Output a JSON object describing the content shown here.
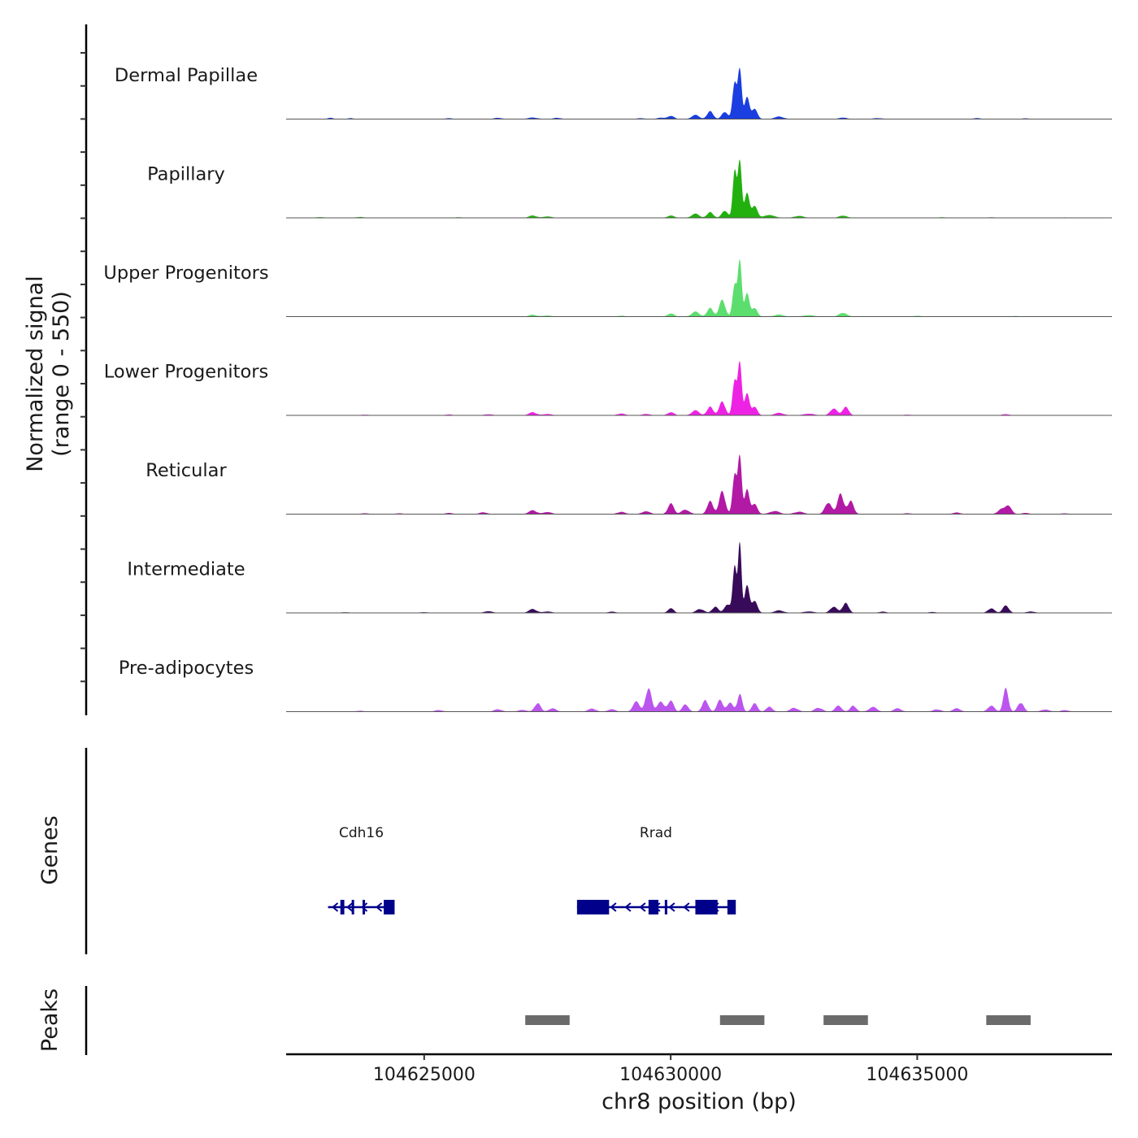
{
  "chart_data": {
    "type": "area",
    "title": "",
    "ylabel_line1": "Normalized signal",
    "ylabel_line2": "(range 0 - 550)",
    "ylim": [
      0,
      550
    ],
    "xlabel": "chr8 position (bp)",
    "xlim": [
      104622200,
      104638950
    ],
    "x_ticks": [
      104625000,
      104630000,
      104635000
    ],
    "x_tick_labels": [
      "104625000",
      "104630000",
      "104635000"
    ],
    "series": [
      {
        "name": "Dermal Papillae",
        "color": "#1a3ee0",
        "peaks": [
          [
            104623100,
            8,
            60
          ],
          [
            104623500,
            6,
            60
          ],
          [
            104625500,
            6,
            80
          ],
          [
            104626500,
            8,
            80
          ],
          [
            104627200,
            10,
            100
          ],
          [
            104627700,
            8,
            80
          ],
          [
            104629400,
            6,
            80
          ],
          [
            104629800,
            8,
            80
          ],
          [
            104630000,
            20,
            70
          ],
          [
            104630500,
            25,
            80
          ],
          [
            104630800,
            55,
            60
          ],
          [
            104631100,
            50,
            60
          ],
          [
            104631300,
            230,
            45
          ],
          [
            104631400,
            300,
            40
          ],
          [
            104631550,
            160,
            45
          ],
          [
            104631700,
            60,
            60
          ],
          [
            104632200,
            15,
            100
          ],
          [
            104633500,
            10,
            80
          ],
          [
            104634200,
            6,
            100
          ],
          [
            104636200,
            6,
            80
          ],
          [
            104637200,
            5,
            80
          ]
        ]
      },
      {
        "name": "Papillary",
        "color": "#22b00e",
        "peaks": [
          [
            104622900,
            5,
            80
          ],
          [
            104623700,
            6,
            80
          ],
          [
            104625700,
            4,
            80
          ],
          [
            104627200,
            15,
            80
          ],
          [
            104627500,
            10,
            80
          ],
          [
            104630000,
            15,
            70
          ],
          [
            104630500,
            25,
            80
          ],
          [
            104630800,
            40,
            60
          ],
          [
            104631100,
            50,
            60
          ],
          [
            104631300,
            300,
            40
          ],
          [
            104631400,
            350,
            40
          ],
          [
            104631550,
            180,
            45
          ],
          [
            104631700,
            70,
            60
          ],
          [
            104632000,
            20,
            100
          ],
          [
            104632600,
            12,
            100
          ],
          [
            104633500,
            15,
            80
          ],
          [
            104635500,
            4,
            80
          ],
          [
            104636500,
            4,
            80
          ],
          [
            104638000,
            3,
            80
          ]
        ]
      },
      {
        "name": "Upper Progenitors",
        "color": "#5cde6e",
        "peaks": [
          [
            104627200,
            12,
            80
          ],
          [
            104627500,
            8,
            80
          ],
          [
            104629000,
            6,
            80
          ],
          [
            104630000,
            20,
            70
          ],
          [
            104630500,
            30,
            80
          ],
          [
            104630800,
            60,
            60
          ],
          [
            104631050,
            110,
            60
          ],
          [
            104631300,
            200,
            45
          ],
          [
            104631400,
            340,
            40
          ],
          [
            104631550,
            170,
            45
          ],
          [
            104631700,
            50,
            60
          ],
          [
            104632200,
            12,
            100
          ],
          [
            104632800,
            10,
            100
          ],
          [
            104633500,
            25,
            80
          ],
          [
            104635000,
            5,
            100
          ],
          [
            104637000,
            4,
            80
          ]
        ]
      },
      {
        "name": "Lower Progenitors",
        "color": "#ee22e4",
        "peaks": [
          [
            104623800,
            5,
            80
          ],
          [
            104625500,
            6,
            80
          ],
          [
            104626300,
            8,
            80
          ],
          [
            104627200,
            20,
            80
          ],
          [
            104627500,
            10,
            80
          ],
          [
            104629000,
            12,
            80
          ],
          [
            104629500,
            10,
            80
          ],
          [
            104630000,
            20,
            70
          ],
          [
            104630500,
            30,
            80
          ],
          [
            104630800,
            60,
            60
          ],
          [
            104631050,
            90,
            60
          ],
          [
            104631300,
            220,
            45
          ],
          [
            104631400,
            320,
            40
          ],
          [
            104631550,
            160,
            45
          ],
          [
            104631700,
            50,
            60
          ],
          [
            104632200,
            15,
            100
          ],
          [
            104632800,
            12,
            100
          ],
          [
            104633300,
            45,
            70
          ],
          [
            104633550,
            60,
            60
          ],
          [
            104634800,
            5,
            80
          ],
          [
            104636800,
            8,
            80
          ]
        ]
      },
      {
        "name": "Reticular",
        "color": "#b21aa6",
        "peaks": [
          [
            104623800,
            6,
            80
          ],
          [
            104624500,
            5,
            80
          ],
          [
            104625500,
            8,
            80
          ],
          [
            104626200,
            12,
            80
          ],
          [
            104627200,
            25,
            80
          ],
          [
            104627500,
            15,
            80
          ],
          [
            104629000,
            15,
            80
          ],
          [
            104629500,
            20,
            80
          ],
          [
            104630000,
            70,
            60
          ],
          [
            104630300,
            30,
            80
          ],
          [
            104630800,
            90,
            60
          ],
          [
            104631050,
            150,
            60
          ],
          [
            104631300,
            250,
            45
          ],
          [
            104631400,
            350,
            40
          ],
          [
            104631550,
            180,
            45
          ],
          [
            104631700,
            60,
            60
          ],
          [
            104632100,
            20,
            100
          ],
          [
            104632600,
            15,
            100
          ],
          [
            104633200,
            80,
            70
          ],
          [
            104633450,
            130,
            60
          ],
          [
            104633650,
            90,
            60
          ],
          [
            104634800,
            6,
            80
          ],
          [
            104635800,
            10,
            80
          ],
          [
            104636700,
            30,
            70
          ],
          [
            104636850,
            60,
            60
          ],
          [
            104637200,
            8,
            80
          ],
          [
            104638000,
            5,
            80
          ]
        ]
      },
      {
        "name": "Intermediate",
        "color": "#380a5a",
        "peaks": [
          [
            104623400,
            5,
            80
          ],
          [
            104625000,
            5,
            80
          ],
          [
            104626300,
            12,
            80
          ],
          [
            104627200,
            25,
            80
          ],
          [
            104627500,
            10,
            80
          ],
          [
            104628800,
            8,
            80
          ],
          [
            104630000,
            30,
            60
          ],
          [
            104630600,
            25,
            80
          ],
          [
            104630900,
            40,
            60
          ],
          [
            104631150,
            60,
            60
          ],
          [
            104631300,
            300,
            40
          ],
          [
            104631400,
            430,
            35
          ],
          [
            104631550,
            200,
            45
          ],
          [
            104631700,
            70,
            60
          ],
          [
            104632200,
            15,
            100
          ],
          [
            104632800,
            10,
            100
          ],
          [
            104633300,
            40,
            70
          ],
          [
            104633550,
            70,
            60
          ],
          [
            104634300,
            8,
            80
          ],
          [
            104635300,
            6,
            80
          ],
          [
            104636500,
            30,
            70
          ],
          [
            104636800,
            50,
            60
          ],
          [
            104637300,
            10,
            80
          ]
        ]
      },
      {
        "name": "Pre-adipocytes",
        "color": "#bb55ee",
        "peaks": [
          [
            104623700,
            6,
            80
          ],
          [
            104625300,
            10,
            80
          ],
          [
            104626500,
            15,
            80
          ],
          [
            104627000,
            12,
            80
          ],
          [
            104627300,
            55,
            60
          ],
          [
            104627600,
            20,
            80
          ],
          [
            104628400,
            20,
            80
          ],
          [
            104628800,
            15,
            80
          ],
          [
            104629300,
            60,
            70
          ],
          [
            104629550,
            160,
            60
          ],
          [
            104629800,
            60,
            70
          ],
          [
            104630000,
            70,
            60
          ],
          [
            104630300,
            50,
            60
          ],
          [
            104630700,
            80,
            60
          ],
          [
            104631000,
            70,
            60
          ],
          [
            104631200,
            60,
            60
          ],
          [
            104631400,
            110,
            50
          ],
          [
            104631700,
            50,
            60
          ],
          [
            104632000,
            35,
            60
          ],
          [
            104632500,
            25,
            80
          ],
          [
            104633000,
            25,
            80
          ],
          [
            104633400,
            35,
            70
          ],
          [
            104633700,
            40,
            60
          ],
          [
            104634100,
            30,
            80
          ],
          [
            104634600,
            20,
            80
          ],
          [
            104635400,
            15,
            80
          ],
          [
            104635800,
            20,
            80
          ],
          [
            104636500,
            40,
            70
          ],
          [
            104636800,
            160,
            50
          ],
          [
            104637100,
            60,
            60
          ],
          [
            104637600,
            15,
            80
          ],
          [
            104638000,
            10,
            80
          ]
        ]
      }
    ],
    "genes_track_label": "Genes",
    "genes": [
      {
        "name": "Cdh16",
        "strand": "-",
        "start": 104623050,
        "end": 104624400,
        "exons": [
          [
            104623300,
            104623380
          ],
          [
            104623530,
            104623570
          ],
          [
            104623750,
            104623800
          ],
          [
            104624180,
            104624400
          ]
        ]
      },
      {
        "name": "Rrad",
        "strand": "-",
        "start": 104628100,
        "end": 104631300,
        "exons": [
          [
            104628100,
            104628750
          ],
          [
            104629550,
            104629750
          ],
          [
            104629880,
            104629920
          ],
          [
            104630500,
            104630950
          ],
          [
            104631150,
            104631320
          ]
        ]
      }
    ],
    "peaks_track_label": "Peaks",
    "called_peaks": [
      [
        104627050,
        104627950
      ],
      [
        104631000,
        104631900
      ],
      [
        104633100,
        104634000
      ],
      [
        104636400,
        104637300
      ]
    ]
  }
}
